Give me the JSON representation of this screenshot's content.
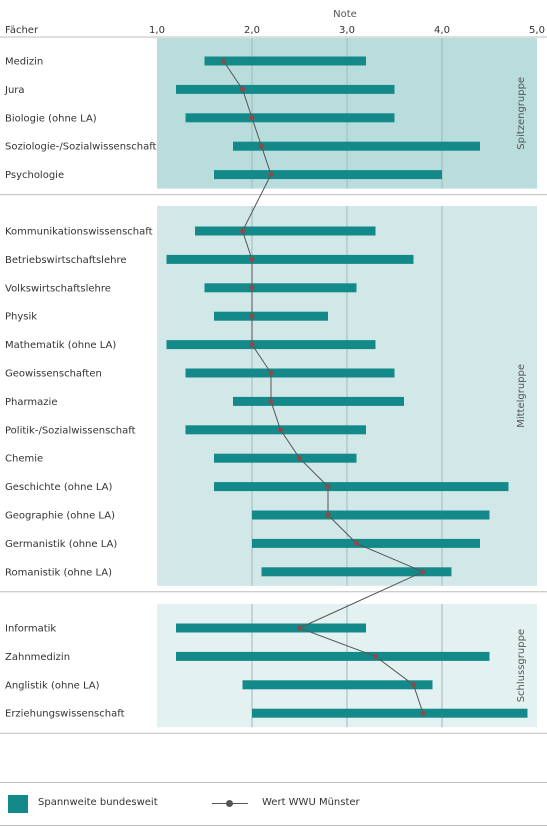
{
  "chart_data": {
    "type": "bar",
    "subtype": "range-bar-with-line",
    "title": "",
    "xlabel": "Note",
    "ylabel": "Fächer",
    "xlim": [
      1.0,
      5.0
    ],
    "x_ticks": [
      "1,0",
      "2,0",
      "3,0",
      "4,0",
      "5,0"
    ],
    "x_tick_values": [
      1.0,
      2.0,
      3.0,
      4.0,
      5.0
    ],
    "grid": true,
    "colors": {
      "range_bar": "#138a89",
      "line": "#555555",
      "point": "#8a4b4b",
      "panel_top": "#b9dcdc",
      "panel_mid": "#d2e8e8",
      "panel_bottom": "#e3f1f1",
      "gridline": "#9cbcbc"
    },
    "groups": [
      {
        "name": "Spitzengruppe",
        "shade": "panel_top",
        "items": [
          {
            "label": "Medizin",
            "min": 1.5,
            "max": 3.2,
            "value": 1.7
          },
          {
            "label": "Jura",
            "min": 1.2,
            "max": 3.5,
            "value": 1.9
          },
          {
            "label": "Biologie (ohne LA)",
            "min": 1.3,
            "max": 3.5,
            "value": 2.0
          },
          {
            "label": "Soziologie-/Sozialwissenschaft",
            "min": 1.8,
            "max": 4.4,
            "value": 2.1
          },
          {
            "label": "Psychologie",
            "min": 1.6,
            "max": 4.0,
            "value": 2.2
          }
        ]
      },
      {
        "name": "Mittelgruppe",
        "shade": "panel_mid",
        "items": [
          {
            "label": "Kommunikationswissenschaft",
            "min": 1.4,
            "max": 3.3,
            "value": 1.9
          },
          {
            "label": "Betriebswirtschaftslehre",
            "min": 1.1,
            "max": 3.7,
            "value": 2.0
          },
          {
            "label": "Volkswirtschaftslehre",
            "min": 1.5,
            "max": 3.1,
            "value": 2.0
          },
          {
            "label": "Physik",
            "min": 1.6,
            "max": 2.8,
            "value": 2.0
          },
          {
            "label": "Mathematik (ohne LA)",
            "min": 1.1,
            "max": 3.3,
            "value": 2.0
          },
          {
            "label": "Geowissenschaften",
            "min": 1.3,
            "max": 3.5,
            "value": 2.2
          },
          {
            "label": "Pharmazie",
            "min": 1.8,
            "max": 3.6,
            "value": 2.2
          },
          {
            "label": "Politik-/Sozialwissenschaft",
            "min": 1.3,
            "max": 3.2,
            "value": 2.3
          },
          {
            "label": "Chemie",
            "min": 1.6,
            "max": 3.1,
            "value": 2.5
          },
          {
            "label": "Geschichte (ohne LA)",
            "min": 1.6,
            "max": 4.7,
            "value": 2.8
          },
          {
            "label": "Geographie (ohne LA)",
            "min": 2.0,
            "max": 4.5,
            "value": 2.8
          },
          {
            "label": "Germanistik (ohne LA)",
            "min": 2.0,
            "max": 4.4,
            "value": 3.1
          },
          {
            "label": "Romanistik (ohne LA)",
            "min": 2.1,
            "max": 4.1,
            "value": 3.8
          }
        ]
      },
      {
        "name": "Schlussgruppe",
        "shade": "panel_bottom",
        "items": [
          {
            "label": "Informatik",
            "min": 1.2,
            "max": 3.2,
            "value": 2.5
          },
          {
            "label": "Zahnmedizin",
            "min": 1.2,
            "max": 4.5,
            "value": 3.3
          },
          {
            "label": "Anglistik (ohne LA)",
            "min": 1.9,
            "max": 3.9,
            "value": 3.7
          },
          {
            "label": "Erziehungswissenschaft",
            "min": 2.0,
            "max": 4.9,
            "value": 3.8
          }
        ]
      }
    ],
    "legend": {
      "placement": "bottom",
      "range_label": "Spannweite bundesweit",
      "line_label": "Wert WWU Münster"
    }
  }
}
